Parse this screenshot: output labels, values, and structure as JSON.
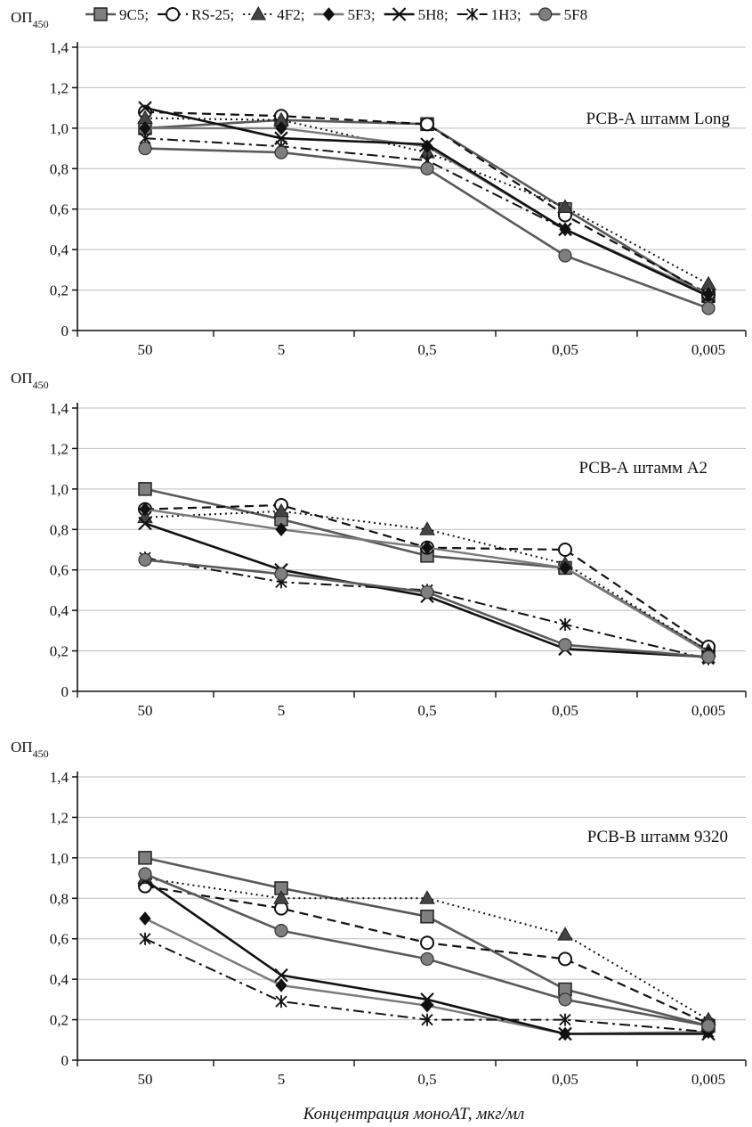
{
  "legend": [
    {
      "name": "9C5;",
      "color": "#595959",
      "dash": "",
      "width": 2.6,
      "marker": "square",
      "fill": "#7f7f7f"
    },
    {
      "name": "RS-25;",
      "color": "#111111",
      "dash": "10,6",
      "width": 2.2,
      "marker": "circle",
      "fill": "#ffffff"
    },
    {
      "name": "4F2;",
      "color": "#111111",
      "dash": "2,4",
      "width": 2,
      "marker": "triangle",
      "fill": "#444444"
    },
    {
      "name": "5F3;",
      "color": "#7a7a7a",
      "dash": "",
      "width": 2.4,
      "marker": "diamond",
      "fill": "#111111"
    },
    {
      "name": "5H8;",
      "color": "#111111",
      "dash": "",
      "width": 2.6,
      "marker": "x",
      "fill": "#111111"
    },
    {
      "name": "1H3;",
      "color": "#111111",
      "dash": "12,5,3,5",
      "width": 2,
      "marker": "asterisk",
      "fill": "#111111"
    },
    {
      "name": "5F8",
      "color": "#5a5a5a",
      "dash": "",
      "width": 2.6,
      "marker": "circle",
      "fill": "#7f7f7f"
    }
  ],
  "chart_data": [
    {
      "type": "line",
      "title": "РСВ-А штамм Long",
      "ylabel_main": "ОП",
      "ylabel_sub": "450",
      "categories": [
        "50",
        "5",
        "0,5",
        "0,05",
        "0,005"
      ],
      "ylim": [
        0,
        1.4
      ],
      "yticks": [
        "0",
        "0,2",
        "0,4",
        "0,6",
        "0,8",
        "1,0",
        "1,2",
        "1,4"
      ],
      "grid": true,
      "series": [
        {
          "name": "9C5",
          "values": [
            1.0,
            1.04,
            1.02,
            0.6,
            0.17
          ]
        },
        {
          "name": "RS-25",
          "values": [
            1.08,
            1.06,
            1.02,
            0.57,
            0.18
          ]
        },
        {
          "name": "4F2",
          "values": [
            1.05,
            1.04,
            0.88,
            0.61,
            0.23
          ]
        },
        {
          "name": "5F3",
          "values": [
            1.0,
            1.0,
            0.91,
            0.5,
            0.18
          ]
        },
        {
          "name": "5H8",
          "values": [
            1.1,
            0.95,
            0.92,
            0.5,
            0.17
          ]
        },
        {
          "name": "1H3",
          "values": [
            0.95,
            0.91,
            0.84,
            0.5,
            0.17
          ]
        },
        {
          "name": "5F8",
          "values": [
            0.9,
            0.88,
            0.8,
            0.37,
            0.11
          ]
        }
      ]
    },
    {
      "type": "line",
      "title": "РСВ-А штамм А2",
      "ylabel_main": "ОП",
      "ylabel_sub": "450",
      "categories": [
        "50",
        "5",
        "0,5",
        "0,05",
        "0,005"
      ],
      "ylim": [
        0,
        1.4
      ],
      "yticks": [
        "0",
        "0,2",
        "0,4",
        "0,6",
        "0,8",
        "1,0",
        "1,2",
        "1,4"
      ],
      "grid": true,
      "series": [
        {
          "name": "9C5",
          "values": [
            1.0,
            0.85,
            0.67,
            0.61,
            0.2
          ]
        },
        {
          "name": "RS-25",
          "values": [
            0.9,
            0.92,
            0.71,
            0.7,
            0.22
          ]
        },
        {
          "name": "4F2",
          "values": [
            0.86,
            0.89,
            0.8,
            0.63,
            0.2
          ]
        },
        {
          "name": "5F3",
          "values": [
            0.9,
            0.8,
            0.71,
            0.61,
            0.19
          ]
        },
        {
          "name": "5H8",
          "values": [
            0.83,
            0.6,
            0.47,
            0.21,
            0.17
          ]
        },
        {
          "name": "1H3",
          "values": [
            0.66,
            0.54,
            0.5,
            0.33,
            0.16
          ]
        },
        {
          "name": "5F8",
          "values": [
            0.65,
            0.58,
            0.49,
            0.23,
            0.17
          ]
        }
      ]
    },
    {
      "type": "line",
      "title": "РСВ-В штамм 9320",
      "ylabel_main": "ОП",
      "ylabel_sub": "450",
      "categories": [
        "50",
        "5",
        "0,5",
        "0,05",
        "0,005"
      ],
      "ylim": [
        0,
        1.4
      ],
      "yticks": [
        "0",
        "0,2",
        "0,4",
        "0,6",
        "0,8",
        "1,0",
        "1,2",
        "1,4"
      ],
      "grid": true,
      "xlabel": "Концентрация моноАТ, мкг/мл",
      "series": [
        {
          "name": "9C5",
          "values": [
            1.0,
            0.85,
            0.71,
            0.35,
            0.17
          ]
        },
        {
          "name": "RS-25",
          "values": [
            0.86,
            0.75,
            0.58,
            0.5,
            0.18
          ]
        },
        {
          "name": "4F2",
          "values": [
            0.9,
            0.8,
            0.8,
            0.62,
            0.2
          ]
        },
        {
          "name": "5F3",
          "values": [
            0.7,
            0.37,
            0.27,
            0.13,
            0.14
          ]
        },
        {
          "name": "5H8",
          "values": [
            0.89,
            0.42,
            0.3,
            0.13,
            0.13
          ]
        },
        {
          "name": "1H3",
          "values": [
            0.6,
            0.29,
            0.2,
            0.2,
            0.14
          ]
        },
        {
          "name": "5F8",
          "values": [
            0.92,
            0.64,
            0.5,
            0.3,
            0.17
          ]
        }
      ]
    }
  ]
}
